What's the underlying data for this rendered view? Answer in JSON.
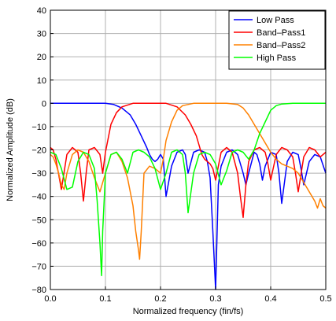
{
  "chart_data": {
    "type": "line",
    "xlabel": "Normalized frequency (fin/fs)",
    "ylabel": "Normalized Amplitude (dB)",
    "xlim": [
      0.0,
      0.5
    ],
    "ylim": [
      -80,
      40
    ],
    "xticks": [
      "0.0",
      "0.1",
      "0.2",
      "0.3",
      "0.4",
      "0.5"
    ],
    "yticks": [
      "40",
      "30",
      "20",
      "10",
      "0",
      "−10",
      "−20",
      "−30",
      "−40",
      "−50",
      "−60",
      "−70",
      "−80"
    ],
    "grid": true,
    "legend_position": "top-right",
    "series": [
      {
        "name": "Low Pass",
        "color": "#0000ff",
        "x": [
          0,
          0.02,
          0.05,
          0.08,
          0.1,
          0.115,
          0.13,
          0.145,
          0.155,
          0.165,
          0.175,
          0.18,
          0.185,
          0.19,
          0.195,
          0.2,
          0.205,
          0.21,
          0.22,
          0.23,
          0.24,
          0.245,
          0.25,
          0.26,
          0.27,
          0.28,
          0.285,
          0.29,
          0.295,
          0.3,
          0.305,
          0.31,
          0.32,
          0.33,
          0.34,
          0.35,
          0.355,
          0.36,
          0.37,
          0.375,
          0.38,
          0.385,
          0.39,
          0.4,
          0.41,
          0.415,
          0.42,
          0.43,
          0.44,
          0.45,
          0.455,
          0.46,
          0.47,
          0.48,
          0.49,
          0.5
        ],
        "values": [
          0,
          0,
          0,
          0,
          0,
          -0.5,
          -2,
          -5,
          -9,
          -14,
          -19,
          -22,
          -24,
          -25,
          -24,
          -22,
          -24,
          -40,
          -27,
          -21,
          -20,
          -22,
          -30,
          -21,
          -20,
          -21,
          -25,
          -32,
          -55,
          -80,
          -35,
          -27,
          -21,
          -20,
          -22,
          -30,
          -35,
          -30,
          -21,
          -22,
          -26,
          -33,
          -27,
          -21,
          -22,
          -30,
          -43,
          -25,
          -21,
          -22,
          -28,
          -35,
          -25,
          -22,
          -23,
          -30
        ]
      },
      {
        "name": "Band–Pass1",
        "color": "#ff0000",
        "x": [
          0,
          0.005,
          0.01,
          0.02,
          0.03,
          0.04,
          0.05,
          0.055,
          0.06,
          0.065,
          0.07,
          0.08,
          0.09,
          0.095,
          0.1,
          0.11,
          0.12,
          0.13,
          0.15,
          0.17,
          0.19,
          0.21,
          0.23,
          0.245,
          0.255,
          0.265,
          0.27,
          0.275,
          0.28,
          0.285,
          0.29,
          0.295,
          0.3,
          0.305,
          0.31,
          0.32,
          0.33,
          0.34,
          0.345,
          0.35,
          0.355,
          0.36,
          0.37,
          0.38,
          0.39,
          0.395,
          0.4,
          0.41,
          0.42,
          0.43,
          0.44,
          0.445,
          0.45,
          0.46,
          0.47,
          0.48,
          0.49,
          0.5
        ],
        "values": [
          -19,
          -20,
          -24,
          -37,
          -22,
          -19,
          -21,
          -30,
          -42,
          -30,
          -20,
          -19,
          -22,
          -30,
          -21,
          -9,
          -4,
          -1.5,
          0,
          0,
          0,
          0,
          -1.5,
          -5,
          -9,
          -14,
          -18,
          -22,
          -24,
          -25,
          -26,
          -28,
          -33,
          -27,
          -21,
          -19,
          -21,
          -30,
          -40,
          -49,
          -35,
          -25,
          -20,
          -19,
          -21,
          -26,
          -33,
          -22,
          -19,
          -20,
          -23,
          -30,
          -38,
          -23,
          -19,
          -20,
          -23,
          -21
        ]
      },
      {
        "name": "Band–Pass2",
        "color": "#ff8000",
        "x": [
          0,
          0.005,
          0.01,
          0.015,
          0.02,
          0.025,
          0.03,
          0.04,
          0.05,
          0.06,
          0.07,
          0.08,
          0.09,
          0.1,
          0.11,
          0.12,
          0.13,
          0.14,
          0.15,
          0.155,
          0.16,
          0.162,
          0.165,
          0.17,
          0.18,
          0.19,
          0.2,
          0.205,
          0.21,
          0.22,
          0.23,
          0.24,
          0.26,
          0.28,
          0.3,
          0.32,
          0.34,
          0.35,
          0.36,
          0.37,
          0.38,
          0.39,
          0.4,
          0.41,
          0.42,
          0.43,
          0.44,
          0.45,
          0.46,
          0.47,
          0.48,
          0.485,
          0.49,
          0.495,
          0.5
        ],
        "values": [
          -22,
          -23,
          -26,
          -30,
          -35,
          -37,
          -30,
          -22,
          -20,
          -21,
          -25,
          -32,
          -38,
          -30,
          -22,
          -21,
          -25,
          -32,
          -44,
          -55,
          -63,
          -67,
          -55,
          -30,
          -27,
          -28,
          -30,
          -24,
          -16,
          -8,
          -3,
          -1,
          0,
          0,
          0,
          0,
          -0.5,
          -2,
          -5,
          -9,
          -13,
          -17,
          -21,
          -24,
          -26,
          -27,
          -28,
          -30,
          -34,
          -38,
          -42,
          -45,
          -41,
          -44,
          -45
        ]
      },
      {
        "name": "High Pass",
        "color": "#00ff00",
        "x": [
          0,
          0.01,
          0.02,
          0.03,
          0.04,
          0.05,
          0.06,
          0.07,
          0.08,
          0.085,
          0.09,
          0.093,
          0.095,
          0.1,
          0.11,
          0.12,
          0.13,
          0.14,
          0.15,
          0.16,
          0.17,
          0.18,
          0.19,
          0.2,
          0.21,
          0.22,
          0.23,
          0.24,
          0.245,
          0.25,
          0.26,
          0.27,
          0.28,
          0.29,
          0.3,
          0.31,
          0.32,
          0.33,
          0.34,
          0.35,
          0.36,
          0.37,
          0.38,
          0.39,
          0.4,
          0.41,
          0.42,
          0.44,
          0.46,
          0.48,
          0.5
        ],
        "values": [
          -21,
          -22,
          -28,
          -37,
          -36,
          -25,
          -21,
          -22,
          -28,
          -42,
          -60,
          -74,
          -55,
          -30,
          -22,
          -21,
          -24,
          -30,
          -21,
          -20,
          -21,
          -23,
          -28,
          -37,
          -30,
          -21,
          -20,
          -22,
          -30,
          -47,
          -30,
          -22,
          -21,
          -22,
          -26,
          -35,
          -29,
          -21,
          -20,
          -21,
          -24,
          -20,
          -13,
          -8,
          -3,
          -1,
          -0.3,
          0,
          0,
          0,
          0
        ]
      }
    ]
  }
}
